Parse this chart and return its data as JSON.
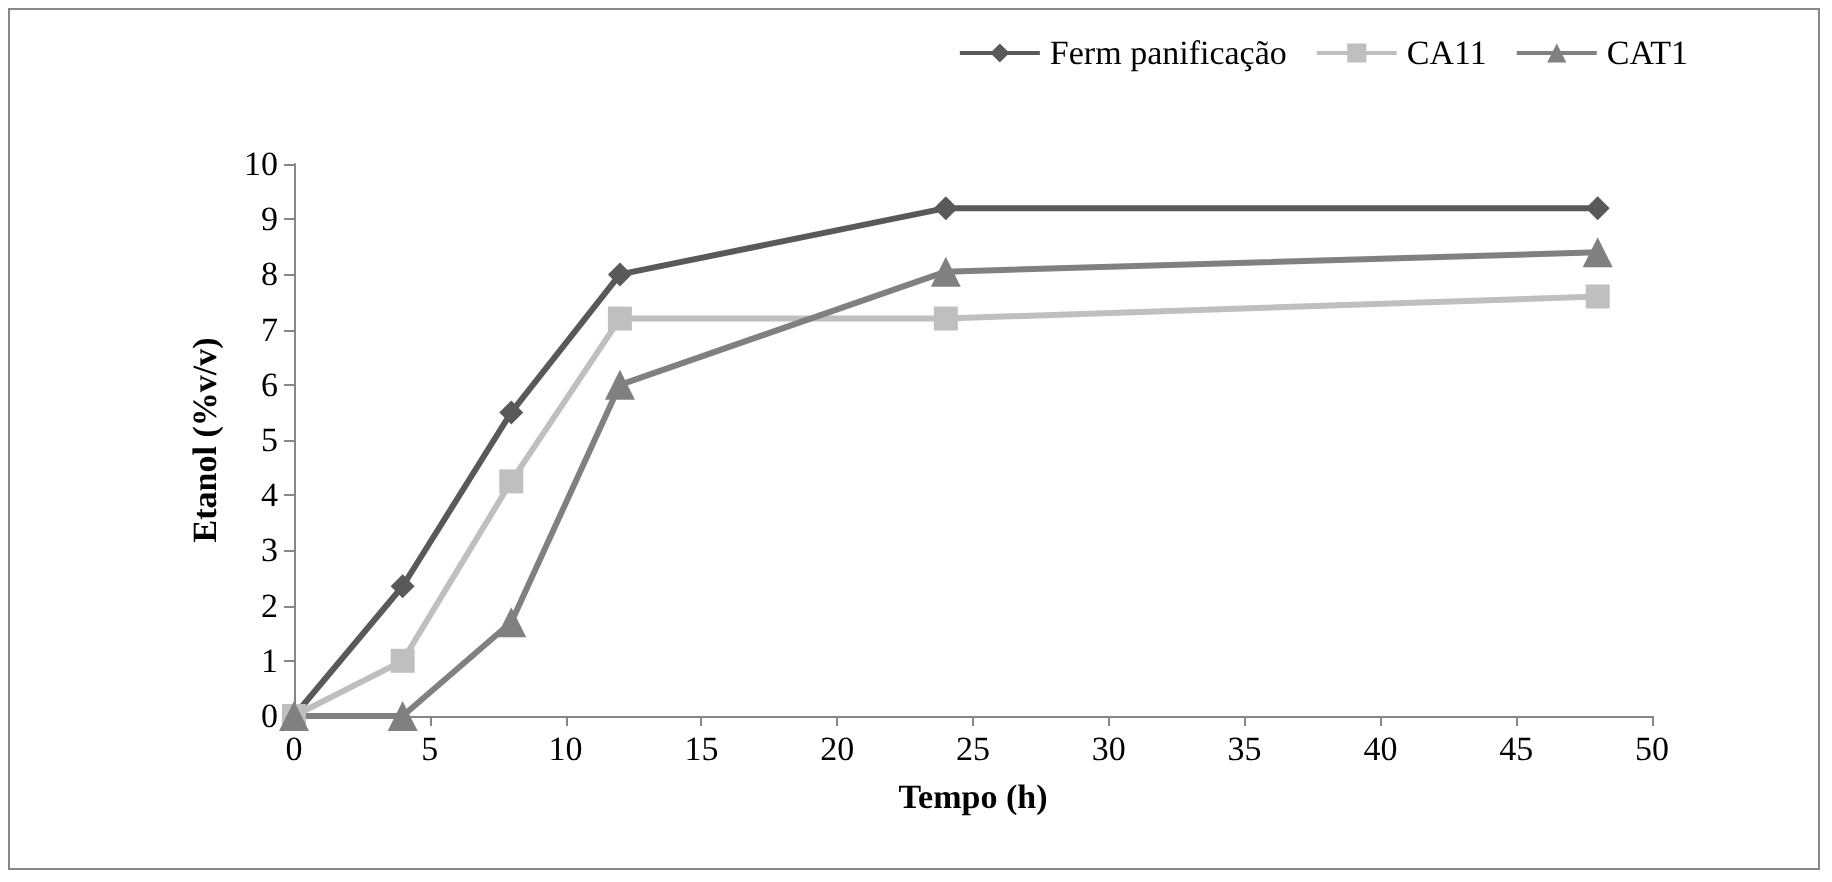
{
  "chart_data": {
    "type": "line",
    "xlabel": "Tempo (h)",
    "ylabel": "Etanol (%v/v)",
    "xlim": [
      0,
      50
    ],
    "xticks": [
      0,
      5,
      10,
      15,
      20,
      25,
      30,
      35,
      40,
      45,
      50
    ],
    "ylim": [
      0,
      10
    ],
    "yticks": [
      0,
      1,
      2,
      3,
      4,
      5,
      6,
      7,
      8,
      9,
      10
    ],
    "x": [
      0,
      4,
      8,
      12,
      24,
      48
    ],
    "series": [
      {
        "name": "Ferm panificação",
        "color": "#595959",
        "marker": "diamond",
        "values": [
          0,
          2.35,
          5.5,
          8.0,
          9.2,
          9.2
        ]
      },
      {
        "name": "CA11",
        "color": "#bfbfbf",
        "marker": "square",
        "values": [
          0,
          1.0,
          4.25,
          7.2,
          7.2,
          7.6
        ]
      },
      {
        "name": "CAT1",
        "color": "#808080",
        "marker": "triangle",
        "values": [
          0,
          0,
          1.7,
          6.0,
          8.05,
          8.4
        ]
      }
    ],
    "grid": false,
    "legend": "top right",
    "line_style": "solid"
  }
}
